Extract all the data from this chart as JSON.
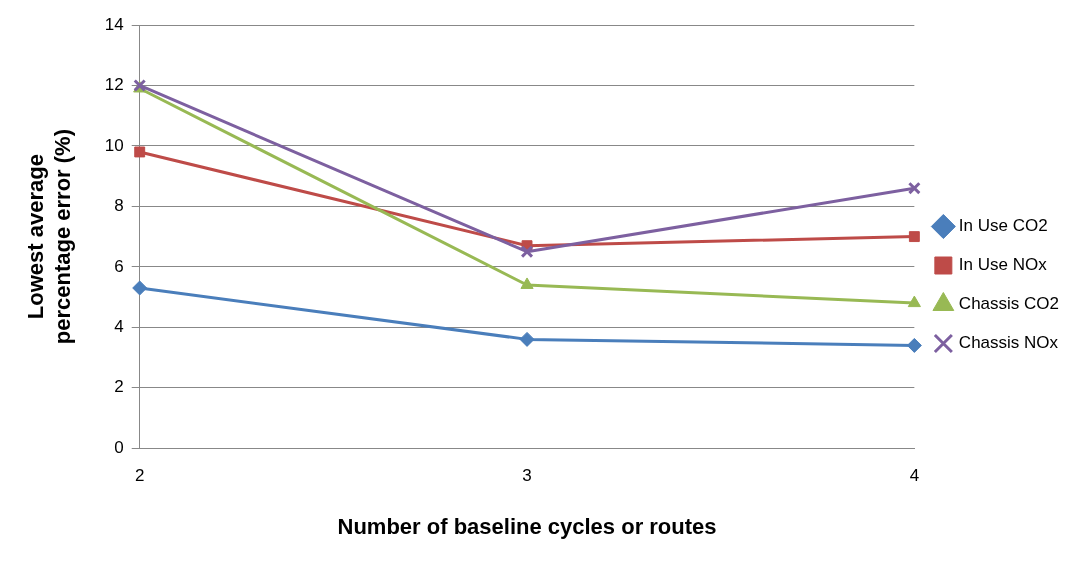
{
  "chart_data": {
    "type": "line",
    "xlabel": "Number of baseline cycles or routes",
    "ylabel": "Lowest average percentage error (%)",
    "categories": [
      "2",
      "3",
      "4"
    ],
    "series": [
      {
        "name": "In Use CO2",
        "color": "#4a7ebb",
        "marker": "diamond",
        "values": [
          5.3,
          3.6,
          3.4
        ]
      },
      {
        "name": "In Use NOx",
        "color": "#be4b48",
        "marker": "square",
        "values": [
          9.8,
          6.7,
          7.0
        ]
      },
      {
        "name": "Chassis CO2",
        "color": "#98b954",
        "marker": "triangle",
        "values": [
          11.9,
          5.4,
          4.8
        ]
      },
      {
        "name": "Chassis NOx",
        "color": "#7d60a0",
        "marker": "cross",
        "values": [
          12.0,
          6.5,
          8.6
        ]
      }
    ],
    "ylim": [
      0,
      14
    ],
    "yticks": [
      0,
      2,
      4,
      6,
      8,
      10,
      12,
      14
    ],
    "grid": "y",
    "legend": "right",
    "line_style": "solid"
  }
}
